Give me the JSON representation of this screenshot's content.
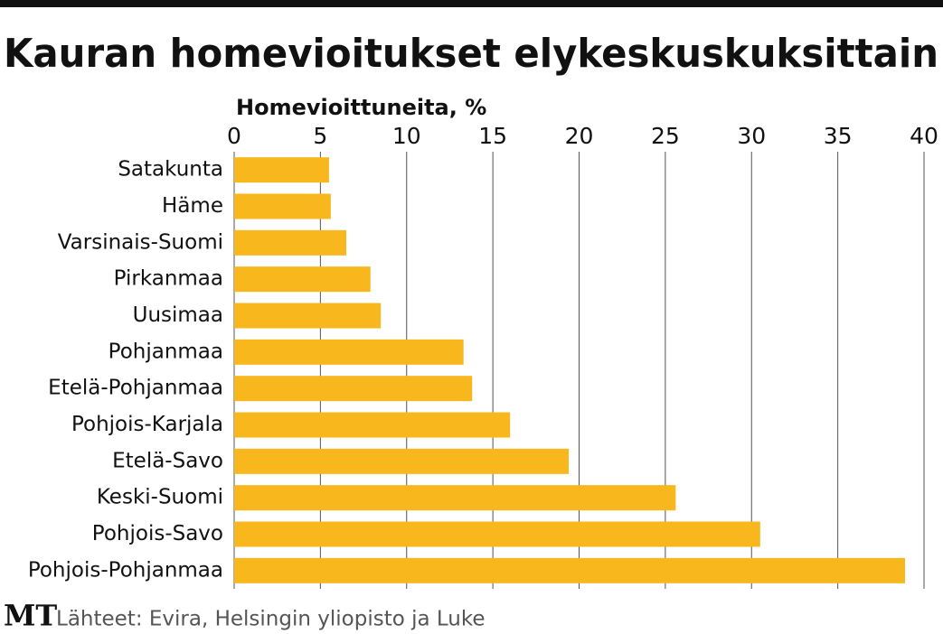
{
  "chart_data": {
    "type": "bar",
    "orientation": "horizontal",
    "title": "Kauran homevioitukset elykeskuskuksittain",
    "x_label": "Homevioittuneita, %",
    "categories": [
      "Satakunta",
      "Häme",
      "Varsinais-Suomi",
      "Pirkanmaa",
      "Uusimaa",
      "Pohjanmaa",
      "Etelä-Pohjanmaa",
      "Pohjois-Karjala",
      "Etelä-Savo",
      "Keski-Suomi",
      "Pohjois-Savo",
      "Pohjois-Pohjanmaa"
    ],
    "values": [
      5.5,
      5.6,
      6.5,
      7.9,
      8.5,
      13.3,
      13.8,
      16.0,
      19.4,
      25.6,
      30.5,
      38.9
    ],
    "color": "#f7b71d",
    "xlim": [
      0,
      40
    ],
    "xticks": [
      0,
      5,
      10,
      15,
      20,
      25,
      30,
      35,
      40
    ],
    "grid": true
  },
  "footer": {
    "logo": "MT",
    "source": "Lähteet: Evira, Helsingin yliopisto ja Luke"
  }
}
